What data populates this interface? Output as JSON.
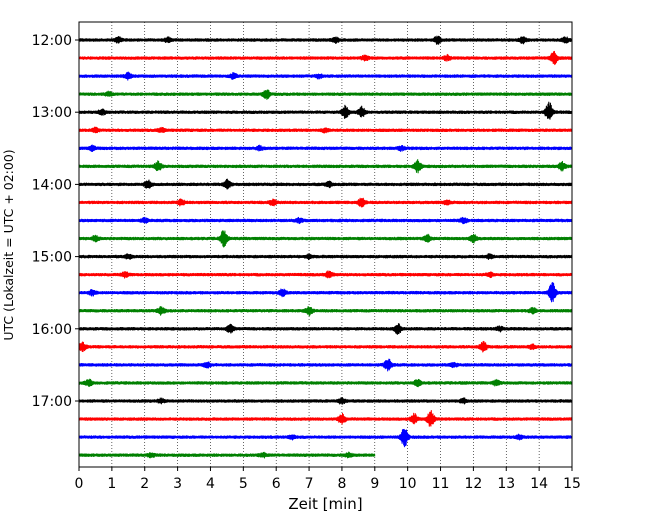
{
  "chart_data": {
    "type": "line",
    "title": "",
    "xlabel": "Zeit  [min]",
    "ylabel": "UTC (Lokalzeit = UTC + 02:00)",
    "xlim": [
      0,
      15
    ],
    "x_ticks": [
      "0",
      "1",
      "2",
      "3",
      "4",
      "5",
      "6",
      "7",
      "8",
      "9",
      "10",
      "11",
      "12",
      "13",
      "14",
      "15"
    ],
    "y_ticks": [
      "12:00",
      "13:00",
      "14:00",
      "15:00",
      "16:00",
      "17:00"
    ],
    "grid": "vertical dotted at each minute",
    "colors": [
      "#000000",
      "#ff0000",
      "#0000ff",
      "#008000"
    ],
    "trace_interval_min": 15,
    "series": [
      {
        "start": "12:00",
        "color": "#000000",
        "end_min": 15,
        "events": [
          [
            1.2,
            0.25
          ],
          [
            2.7,
            0.2
          ],
          [
            7.8,
            0.25
          ],
          [
            10.9,
            0.35
          ],
          [
            13.5,
            0.3
          ],
          [
            14.8,
            0.25
          ]
        ]
      },
      {
        "start": "12:15",
        "color": "#ff0000",
        "end_min": 15,
        "events": [
          [
            8.7,
            0.25
          ],
          [
            11.2,
            0.25
          ],
          [
            14.45,
            0.6
          ]
        ]
      },
      {
        "start": "12:30",
        "color": "#0000ff",
        "end_min": 15,
        "events": [
          [
            1.5,
            0.3
          ],
          [
            4.7,
            0.3
          ],
          [
            7.3,
            0.2
          ]
        ]
      },
      {
        "start": "12:45",
        "color": "#008000",
        "end_min": 15,
        "events": [
          [
            0.9,
            0.2
          ],
          [
            5.7,
            0.45
          ]
        ]
      },
      {
        "start": "13:00",
        "color": "#000000",
        "end_min": 15,
        "events": [
          [
            0.7,
            0.25
          ],
          [
            8.1,
            0.6
          ],
          [
            8.6,
            0.5
          ],
          [
            14.3,
            1.0
          ]
        ]
      },
      {
        "start": "13:15",
        "color": "#ff0000",
        "end_min": 15,
        "events": [
          [
            0.5,
            0.2
          ],
          [
            2.5,
            0.2
          ],
          [
            7.5,
            0.2
          ]
        ]
      },
      {
        "start": "13:30",
        "color": "#0000ff",
        "end_min": 15,
        "events": [
          [
            0.4,
            0.2
          ],
          [
            5.5,
            0.2
          ],
          [
            9.8,
            0.2
          ]
        ]
      },
      {
        "start": "13:45",
        "color": "#008000",
        "end_min": 15,
        "events": [
          [
            2.4,
            0.45
          ],
          [
            10.3,
            0.6
          ],
          [
            14.7,
            0.4
          ]
        ]
      },
      {
        "start": "14:00",
        "color": "#000000",
        "end_min": 15,
        "events": [
          [
            2.1,
            0.4
          ],
          [
            4.5,
            0.45
          ],
          [
            7.6,
            0.25
          ]
        ]
      },
      {
        "start": "14:15",
        "color": "#ff0000",
        "end_min": 15,
        "events": [
          [
            3.1,
            0.3
          ],
          [
            5.9,
            0.25
          ],
          [
            8.6,
            0.4
          ],
          [
            11.2,
            0.2
          ]
        ]
      },
      {
        "start": "14:30",
        "color": "#0000ff",
        "end_min": 15,
        "events": [
          [
            2.0,
            0.2
          ],
          [
            6.7,
            0.2
          ],
          [
            11.7,
            0.25
          ]
        ]
      },
      {
        "start": "14:45",
        "color": "#008000",
        "end_min": 15,
        "events": [
          [
            0.5,
            0.25
          ],
          [
            4.4,
            0.8
          ],
          [
            10.6,
            0.35
          ],
          [
            12.0,
            0.4
          ]
        ]
      },
      {
        "start": "15:00",
        "color": "#000000",
        "end_min": 15,
        "events": [
          [
            1.5,
            0.2
          ],
          [
            7.0,
            0.2
          ],
          [
            12.5,
            0.2
          ]
        ]
      },
      {
        "start": "15:15",
        "color": "#ff0000",
        "end_min": 15,
        "events": [
          [
            1.4,
            0.25
          ],
          [
            7.6,
            0.3
          ],
          [
            12.5,
            0.2
          ]
        ]
      },
      {
        "start": "15:30",
        "color": "#0000ff",
        "end_min": 15,
        "events": [
          [
            0.4,
            0.25
          ],
          [
            6.2,
            0.35
          ],
          [
            14.4,
            1.0
          ]
        ]
      },
      {
        "start": "15:45",
        "color": "#008000",
        "end_min": 15,
        "events": [
          [
            2.5,
            0.35
          ],
          [
            7.0,
            0.4
          ],
          [
            13.8,
            0.3
          ]
        ]
      },
      {
        "start": "16:00",
        "color": "#000000",
        "end_min": 15,
        "events": [
          [
            4.6,
            0.4
          ],
          [
            9.7,
            0.5
          ],
          [
            12.8,
            0.2
          ]
        ]
      },
      {
        "start": "16:15",
        "color": "#ff0000",
        "end_min": 15,
        "events": [
          [
            0.1,
            0.45
          ],
          [
            12.3,
            0.55
          ],
          [
            13.8,
            0.2
          ]
        ]
      },
      {
        "start": "16:30",
        "color": "#0000ff",
        "end_min": 15,
        "events": [
          [
            3.9,
            0.25
          ],
          [
            9.4,
            0.6
          ],
          [
            11.4,
            0.2
          ]
        ]
      },
      {
        "start": "16:45",
        "color": "#008000",
        "end_min": 15,
        "events": [
          [
            0.3,
            0.3
          ],
          [
            10.3,
            0.3
          ],
          [
            12.7,
            0.25
          ]
        ]
      },
      {
        "start": "17:00",
        "color": "#000000",
        "end_min": 15,
        "events": [
          [
            2.5,
            0.2
          ],
          [
            8.0,
            0.3
          ],
          [
            11.7,
            0.2
          ]
        ]
      },
      {
        "start": "17:15",
        "color": "#ff0000",
        "end_min": 15,
        "events": [
          [
            8.0,
            0.5
          ],
          [
            10.2,
            0.5
          ],
          [
            10.7,
            0.85
          ]
        ]
      },
      {
        "start": "17:30",
        "color": "#0000ff",
        "end_min": 15,
        "events": [
          [
            6.5,
            0.2
          ],
          [
            9.9,
            1.0
          ],
          [
            13.4,
            0.2
          ]
        ]
      },
      {
        "start": "17:45",
        "color": "#008000",
        "end_min": 9,
        "events": [
          [
            2.2,
            0.2
          ],
          [
            5.6,
            0.2
          ],
          [
            8.2,
            0.2
          ]
        ]
      }
    ]
  }
}
